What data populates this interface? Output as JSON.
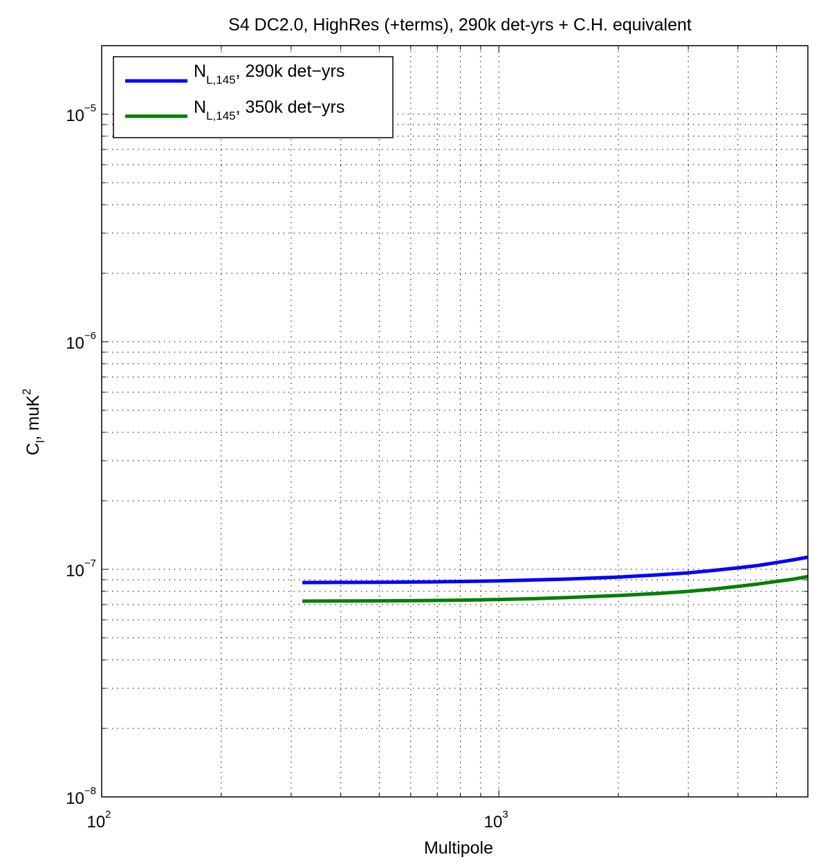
{
  "chart_data": {
    "type": "line",
    "title": "S4 DC2.0, HighRes (+terms), 290k det-yrs + C.H. equivalent",
    "xlabel": "Multipole",
    "ylabel": {
      "base": "C",
      "sub": "l",
      "rest": ", muK",
      "sup": "2"
    },
    "xscale": "log",
    "yscale": "log",
    "xlim": [
      100,
      6000
    ],
    "ylim": [
      1e-08,
      2e-05
    ],
    "grid": true,
    "legend_position": "top-left",
    "x_ticks": [
      {
        "value": 100,
        "base": "10",
        "exp": "2"
      },
      {
        "value": 1000,
        "base": "10",
        "exp": "3"
      }
    ],
    "y_ticks": [
      {
        "value": 1e-08,
        "base": "10",
        "exp": "−8"
      },
      {
        "value": 1e-07,
        "base": "10",
        "exp": "−7"
      },
      {
        "value": 1e-06,
        "base": "10",
        "exp": "−6"
      },
      {
        "value": 1e-05,
        "base": "10",
        "exp": "−5"
      }
    ],
    "series": [
      {
        "name": "N_{L,145}, 290k det-yrs",
        "legend": {
          "base": "N",
          "sub": "L,145",
          "rest": ", 290k det−yrs"
        },
        "color": "#0000ff",
        "x": [
          320,
          400,
          500,
          600,
          700,
          800,
          1000,
          1200,
          1500,
          2000,
          2500,
          3000,
          3500,
          4000,
          4500,
          5000,
          5500,
          6000
        ],
        "y": [
          8.75e-08,
          8.76e-08,
          8.77e-08,
          8.79e-08,
          8.81e-08,
          8.84e-08,
          8.9e-08,
          8.97e-08,
          9.07e-08,
          9.25e-08,
          9.45e-08,
          9.65e-08,
          9.9e-08,
          1.015e-07,
          1.04e-07,
          1.07e-07,
          1.1e-07,
          1.13e-07
        ]
      },
      {
        "name": "N_{L,145}, 350k det-yrs",
        "legend": {
          "base": "N",
          "sub": "L,145",
          "rest": ", 350k det−yrs"
        },
        "color": "#008000",
        "x": [
          320,
          400,
          500,
          600,
          700,
          800,
          1000,
          1200,
          1500,
          2000,
          2500,
          3000,
          3500,
          4000,
          4500,
          5000,
          5500,
          6000
        ],
        "y": [
          7.25e-08,
          7.26e-08,
          7.27e-08,
          7.28e-08,
          7.3e-08,
          7.32e-08,
          7.37e-08,
          7.42e-08,
          7.52e-08,
          7.67e-08,
          7.83e-08,
          8e-08,
          8.2e-08,
          8.42e-08,
          8.62e-08,
          8.85e-08,
          9.05e-08,
          9.3e-08
        ]
      }
    ]
  }
}
